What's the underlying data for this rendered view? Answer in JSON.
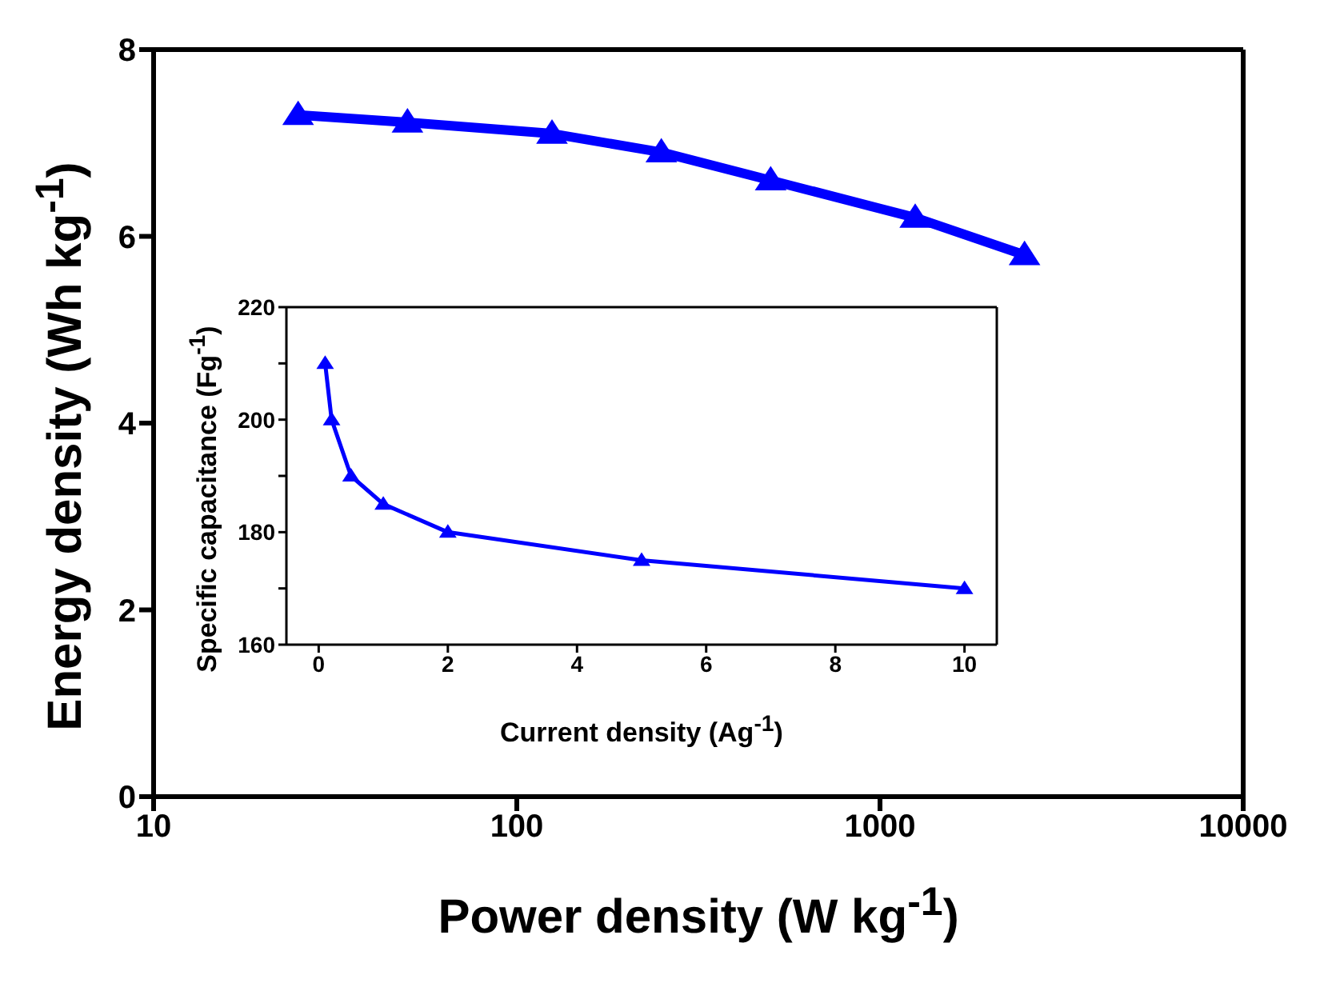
{
  "chart_data": [
    {
      "type": "line",
      "xlabel": "Power density (W kg$^{-1}$)",
      "ylabel": "Energy density (Wh kg$^{-1}$)",
      "log": "x",
      "xlim": [
        10,
        10000
      ],
      "xticks": [
        10,
        100,
        1000,
        10000
      ],
      "ylim": [
        0,
        8
      ],
      "yticks": [
        0,
        2,
        4,
        6,
        8
      ],
      "marker": "triangle",
      "grid": false,
      "legend": false,
      "x": [
        25,
        50,
        125,
        250,
        500,
        1250,
        2500
      ],
      "series": [
        {
          "color": "#0000ff",
          "values": [
            7.3,
            7.22,
            7.1,
            6.9,
            6.6,
            6.2,
            5.8
          ]
        }
      ]
    },
    {
      "type": "line",
      "xlabel": "Current density (Ag$^{-1}$)",
      "ylabel": "Specific capacitance (Fg$^{-1}$)",
      "xlim": [
        -0.5,
        10.5
      ],
      "xticks": [
        0,
        2,
        4,
        6,
        8,
        10
      ],
      "ylim": [
        160,
        220
      ],
      "yticks": [
        160,
        {
          "value": 170,
          "label": null
        },
        180,
        {
          "value": 190,
          "label": null
        },
        200,
        {
          "value": 210,
          "label": null
        },
        220
      ],
      "marker": "triangle",
      "grid": false,
      "legend": false,
      "x": [
        0.1,
        0.2,
        0.5,
        1,
        2,
        5,
        10
      ],
      "series": [
        {
          "color": "#0000ff",
          "values": [
            210,
            200,
            190,
            185,
            180,
            175,
            170
          ]
        }
      ]
    }
  ]
}
